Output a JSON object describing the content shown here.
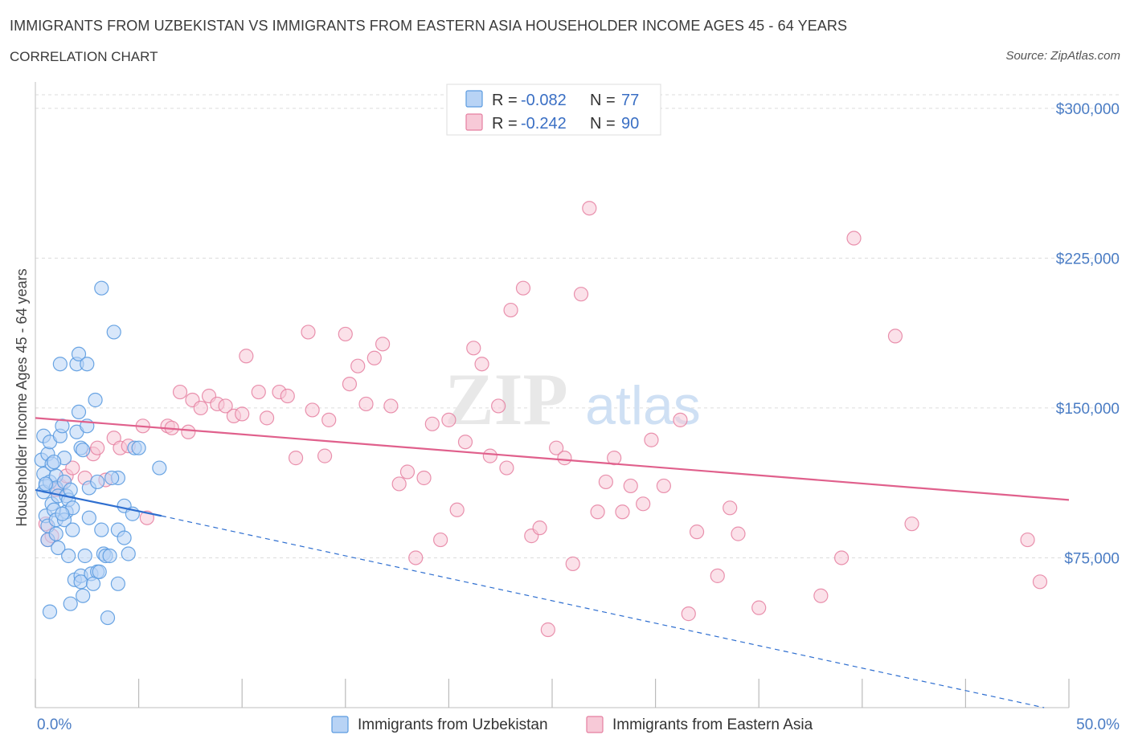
{
  "header": {
    "title": "IMMIGRANTS FROM UZBEKISTAN VS IMMIGRANTS FROM EASTERN ASIA HOUSEHOLDER INCOME AGES 45 - 64 YEARS",
    "subtitle": "CORRELATION CHART",
    "source": "Source: ZipAtlas.com"
  },
  "watermark": {
    "zip": "ZIP",
    "atlas": "atlas"
  },
  "colors": {
    "blue": "#5b9be0",
    "blue_fill": "#b8d3f5",
    "blue_line": "#2f6fd0",
    "pink": "#e57fa0",
    "pink_fill": "#f7c9d7",
    "pink_line": "#e0608c",
    "tick_text": "#4a7cc4",
    "grid": "#dcdcdc"
  },
  "legend": {
    "rows": [
      {
        "r_label": "R =",
        "r_value": "-0.082",
        "n_label": "N =",
        "n_value": "77"
      },
      {
        "r_label": "R =",
        "r_value": "-0.242",
        "n_label": "N =",
        "n_value": "90"
      }
    ]
  },
  "chart_data": {
    "type": "scatter",
    "title": "IMMIGRANTS FROM UZBEKISTAN VS IMMIGRANTS FROM EASTERN ASIA HOUSEHOLDER INCOME AGES 45 - 64 YEARS",
    "xlabel": "",
    "ylabel": "Householder Income Ages 45 - 64 years",
    "xlim": [
      0,
      50
    ],
    "ylim": [
      0,
      310000
    ],
    "x_tick_labels": [
      "0.0%",
      "50.0%"
    ],
    "y_ticks": [
      75000,
      150000,
      225000,
      300000
    ],
    "y_tick_labels": [
      "$75,000",
      "$150,000",
      "$225,000",
      "$300,000"
    ],
    "grid": true,
    "legend_placement": "top-center",
    "series": [
      {
        "name": "Immigrants from Uzbekistan",
        "color": "#5b9be0",
        "trend": {
          "x": [
            0,
            6.1
          ],
          "y": [
            109000,
            96000
          ],
          "dashed_extension": {
            "x": [
              6.1,
              48.8
            ],
            "y": [
              96000,
              0
            ]
          }
        },
        "points": [
          [
            0.3,
            124000
          ],
          [
            0.4,
            117000
          ],
          [
            0.5,
            111000
          ],
          [
            0.4,
            108000
          ],
          [
            0.5,
            96000
          ],
          [
            0.6,
            91000
          ],
          [
            0.6,
            84000
          ],
          [
            0.4,
            136000
          ],
          [
            0.6,
            127000
          ],
          [
            0.7,
            133000
          ],
          [
            0.8,
            122000
          ],
          [
            0.7,
            113000
          ],
          [
            0.8,
            102000
          ],
          [
            0.9,
            99000
          ],
          [
            1.0,
            116000
          ],
          [
            1.0,
            110000
          ],
          [
            1.1,
            106000
          ],
          [
            1.0,
            94000
          ],
          [
            1.0,
            87000
          ],
          [
            1.1,
            80000
          ],
          [
            1.2,
            136000
          ],
          [
            1.2,
            172000
          ],
          [
            1.3,
            141000
          ],
          [
            1.4,
            125000
          ],
          [
            1.4,
            113000
          ],
          [
            1.5,
            106000
          ],
          [
            1.5,
            98000
          ],
          [
            1.4,
            94000
          ],
          [
            1.6,
            104000
          ],
          [
            1.7,
            109000
          ],
          [
            1.8,
            100000
          ],
          [
            1.8,
            89000
          ],
          [
            1.9,
            64000
          ],
          [
            2.0,
            172000
          ],
          [
            2.0,
            138000
          ],
          [
            1.6,
            76000
          ],
          [
            2.1,
            148000
          ],
          [
            2.1,
            177000
          ],
          [
            2.2,
            130000
          ],
          [
            2.2,
            66000
          ],
          [
            2.2,
            63000
          ],
          [
            2.3,
            56000
          ],
          [
            2.5,
            172000
          ],
          [
            2.5,
            141000
          ],
          [
            2.6,
            95000
          ],
          [
            2.7,
            67000
          ],
          [
            2.6,
            110000
          ],
          [
            2.9,
            154000
          ],
          [
            3.0,
            113000
          ],
          [
            3.0,
            68000
          ],
          [
            3.2,
            89000
          ],
          [
            3.3,
            77000
          ],
          [
            3.4,
            76000
          ],
          [
            3.5,
            45000
          ],
          [
            3.6,
            76000
          ],
          [
            2.4,
            76000
          ],
          [
            2.8,
            62000
          ],
          [
            3.8,
            188000
          ],
          [
            4.0,
            89000
          ],
          [
            4.0,
            62000
          ],
          [
            3.1,
            68000
          ],
          [
            3.2,
            210000
          ],
          [
            4.0,
            115000
          ],
          [
            4.3,
            101000
          ],
          [
            4.3,
            85000
          ],
          [
            4.5,
            77000
          ],
          [
            4.7,
            97000
          ],
          [
            4.8,
            130000
          ],
          [
            5.0,
            130000
          ],
          [
            6.0,
            120000
          ],
          [
            0.7,
            48000
          ],
          [
            2.3,
            129000
          ],
          [
            1.7,
            52000
          ],
          [
            3.7,
            115000
          ],
          [
            0.5,
            112000
          ],
          [
            0.9,
            123000
          ],
          [
            1.3,
            97000
          ]
        ]
      },
      {
        "name": "Immigrants from Eastern Asia",
        "color": "#e57fa0",
        "trend": {
          "x": [
            0,
            50
          ],
          "y": [
            145000,
            104000
          ]
        },
        "points": [
          [
            0.5,
            92000
          ],
          [
            0.6,
            84000
          ],
          [
            0.8,
            86000
          ],
          [
            1.0,
            109000
          ],
          [
            1.2,
            111000
          ],
          [
            1.5,
            116000
          ],
          [
            1.8,
            120000
          ],
          [
            2.4,
            115000
          ],
          [
            2.8,
            127000
          ],
          [
            3.0,
            130000
          ],
          [
            3.4,
            114000
          ],
          [
            3.8,
            135000
          ],
          [
            4.1,
            130000
          ],
          [
            4.5,
            131000
          ],
          [
            5.2,
            141000
          ],
          [
            5.4,
            95000
          ],
          [
            6.4,
            141000
          ],
          [
            6.6,
            140000
          ],
          [
            7.0,
            158000
          ],
          [
            7.4,
            138000
          ],
          [
            7.6,
            154000
          ],
          [
            8.0,
            150000
          ],
          [
            8.4,
            156000
          ],
          [
            8.8,
            152000
          ],
          [
            9.2,
            151000
          ],
          [
            9.6,
            146000
          ],
          [
            10.0,
            147000
          ],
          [
            10.2,
            176000
          ],
          [
            10.8,
            158000
          ],
          [
            11.2,
            145000
          ],
          [
            11.8,
            158000
          ],
          [
            12.2,
            156000
          ],
          [
            12.6,
            125000
          ],
          [
            13.2,
            188000
          ],
          [
            13.4,
            149000
          ],
          [
            14.0,
            126000
          ],
          [
            14.2,
            144000
          ],
          [
            15.0,
            187000
          ],
          [
            15.2,
            162000
          ],
          [
            15.6,
            171000
          ],
          [
            16.0,
            152000
          ],
          [
            16.4,
            175000
          ],
          [
            16.8,
            182000
          ],
          [
            17.2,
            151000
          ],
          [
            17.6,
            112000
          ],
          [
            18.0,
            118000
          ],
          [
            18.4,
            75000
          ],
          [
            18.8,
            115000
          ],
          [
            19.2,
            142000
          ],
          [
            19.6,
            84000
          ],
          [
            20.0,
            144000
          ],
          [
            20.4,
            99000
          ],
          [
            20.8,
            133000
          ],
          [
            21.2,
            180000
          ],
          [
            21.6,
            172000
          ],
          [
            22.0,
            126000
          ],
          [
            22.4,
            151000
          ],
          [
            22.8,
            120000
          ],
          [
            23.0,
            199000
          ],
          [
            23.6,
            210000
          ],
          [
            24.0,
            86000
          ],
          [
            24.4,
            90000
          ],
          [
            24.8,
            39000
          ],
          [
            25.2,
            130000
          ],
          [
            25.6,
            125000
          ],
          [
            26.0,
            72000
          ],
          [
            26.4,
            207000
          ],
          [
            26.8,
            250000
          ],
          [
            27.2,
            98000
          ],
          [
            27.6,
            113000
          ],
          [
            28.0,
            125000
          ],
          [
            28.4,
            98000
          ],
          [
            28.8,
            111000
          ],
          [
            29.4,
            102000
          ],
          [
            29.8,
            134000
          ],
          [
            30.4,
            111000
          ],
          [
            31.2,
            144000
          ],
          [
            31.6,
            47000
          ],
          [
            32.0,
            88000
          ],
          [
            33.0,
            66000
          ],
          [
            33.6,
            100000
          ],
          [
            34.0,
            87000
          ],
          [
            35.0,
            50000
          ],
          [
            38.0,
            56000
          ],
          [
            39.0,
            75000
          ],
          [
            39.6,
            235000
          ],
          [
            41.6,
            186000
          ],
          [
            42.4,
            92000
          ],
          [
            48.0,
            84000
          ],
          [
            48.6,
            63000
          ]
        ]
      }
    ]
  },
  "axis_labels": {
    "x_left": "0.0%",
    "x_right": "50.0%",
    "y_title": "Householder Income Ages 45 - 64 years"
  },
  "bottom_legend": {
    "items": [
      "Immigrants from Uzbekistan",
      "Immigrants from Eastern Asia"
    ]
  }
}
